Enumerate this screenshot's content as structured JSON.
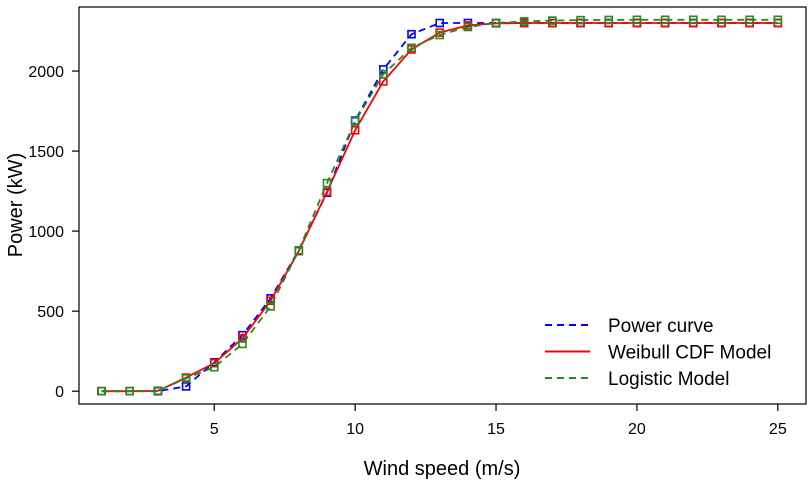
{
  "chart_data": {
    "type": "line",
    "title": "",
    "xlabel": "Wind speed (m/s)",
    "ylabel": "Power (kW)",
    "xlim": [
      0.2,
      26
    ],
    "ylim": [
      -80,
      2400
    ],
    "xticks": [
      5,
      10,
      15,
      20,
      25
    ],
    "yticks": [
      0,
      500,
      1000,
      1500,
      2000
    ],
    "grid": false,
    "legend_position": "bottom-right",
    "x": [
      1,
      2,
      3,
      4,
      5,
      6,
      7,
      8,
      9,
      10,
      11,
      12,
      13,
      14,
      15,
      16,
      17,
      18,
      19,
      20,
      21,
      22,
      23,
      24,
      25
    ],
    "series": [
      {
        "name": "Power curve",
        "color": "#0000ff",
        "line_style": "dashed",
        "marker": "open-square",
        "values": [
          0,
          0,
          0,
          30,
          180,
          350,
          580,
          880,
          1240,
          1690,
          2010,
          2230,
          2300,
          2300,
          2300,
          2300,
          2300,
          2300,
          2300,
          2300,
          2300,
          2300,
          2300,
          2300,
          2300
        ]
      },
      {
        "name": "Weibull CDF Model",
        "color": "#ff0000",
        "line_style": "solid",
        "marker": "open-square",
        "values": [
          0,
          0,
          2,
          85,
          175,
          330,
          565,
          875,
          1245,
          1630,
          1935,
          2135,
          2240,
          2285,
          2298,
          2300,
          2300,
          2300,
          2300,
          2300,
          2300,
          2300,
          2300,
          2300,
          2300
        ]
      },
      {
        "name": "Logistic Model",
        "color": "#228b22",
        "line_style": "dashed",
        "marker": "open-square",
        "values": [
          0,
          0,
          3,
          80,
          150,
          295,
          530,
          880,
          1300,
          1685,
          1980,
          2145,
          2225,
          2275,
          2300,
          2310,
          2315,
          2318,
          2319,
          2320,
          2320,
          2320,
          2320,
          2320,
          2320
        ]
      }
    ]
  }
}
